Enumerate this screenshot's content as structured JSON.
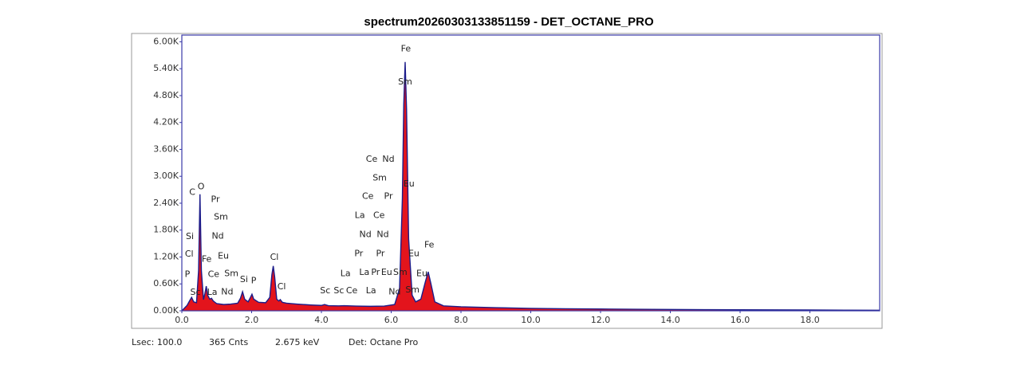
{
  "chart_data": {
    "type": "area",
    "title": "spectrum20260303133851159 - DET_OCTANE_PRO",
    "x": [
      0,
      0.15,
      0.22,
      0.28,
      0.34,
      0.42,
      0.48,
      0.52,
      0.56,
      0.62,
      0.66,
      0.7,
      0.74,
      0.8,
      0.85,
      0.9,
      1,
      1.2,
      1.4,
      1.6,
      1.68,
      1.74,
      1.8,
      1.9,
      1.96,
      2.01,
      2.06,
      2.2,
      2.4,
      2.52,
      2.58,
      2.62,
      2.66,
      2.72,
      2.78,
      2.82,
      2.88,
      3,
      3.3,
      3.7,
      4,
      4.09,
      4.2,
      4.5,
      4.65,
      5,
      5.4,
      5.8,
      6.1,
      6.24,
      6.32,
      6.36,
      6.4,
      6.44,
      6.5,
      6.6,
      6.7,
      6.85,
      6.98,
      7.06,
      7.14,
      7.25,
      7.5,
      8,
      9,
      10,
      11,
      12,
      13,
      14,
      15,
      16,
      17,
      18,
      19,
      20
    ],
    "values": [
      0,
      120,
      220,
      300,
      200,
      180,
      900,
      2600,
      900,
      250,
      380,
      550,
      350,
      260,
      280,
      220,
      160,
      140,
      150,
      170,
      280,
      425,
      260,
      200,
      290,
      370,
      260,
      190,
      180,
      300,
      800,
      1000,
      760,
      260,
      220,
      250,
      190,
      170,
      150,
      130,
      120,
      140,
      115,
      110,
      115,
      105,
      100,
      105,
      140,
      500,
      2500,
      4600,
      5550,
      4500,
      1600,
      350,
      200,
      260,
      650,
      870,
      600,
      200,
      110,
      90,
      70,
      55,
      45,
      40,
      35,
      30,
      25,
      22,
      20,
      18,
      15,
      12
    ],
    "color": "#e3141c",
    "line_color": "#1c1c8a",
    "xlim": [
      0,
      20
    ],
    "xticks": [
      {
        "value": 0,
        "label": "0.0"
      },
      {
        "value": 2,
        "label": "2.0"
      },
      {
        "value": 4,
        "label": "4.0"
      },
      {
        "value": 6,
        "label": "6.0"
      },
      {
        "value": 8,
        "label": "8.0"
      },
      {
        "value": 10,
        "label": "10.0"
      },
      {
        "value": 12,
        "label": "12.0"
      },
      {
        "value": 14,
        "label": "14.0"
      },
      {
        "value": 16,
        "label": "16.0"
      },
      {
        "value": 18,
        "label": "18.0"
      }
    ],
    "ylim": [
      0,
      6150
    ],
    "yticks": [
      {
        "value": 0,
        "label": "0.00K"
      },
      {
        "value": 600,
        "label": "0.60K"
      },
      {
        "value": 1200,
        "label": "1.20K"
      },
      {
        "value": 1800,
        "label": "1.80K"
      },
      {
        "value": 2400,
        "label": "2.40K"
      },
      {
        "value": 3000,
        "label": "3.00K"
      },
      {
        "value": 3600,
        "label": "3.60K"
      },
      {
        "value": 4200,
        "label": "4.20K"
      },
      {
        "value": 4800,
        "label": "4.80K"
      },
      {
        "value": 5400,
        "label": "5.40K"
      },
      {
        "value": 6000,
        "label": "6.00K"
      }
    ],
    "annotations": [
      {
        "text": "Fe",
        "x": 6.42,
        "y": 5840
      },
      {
        "text": "Sm",
        "x": 6.4,
        "y": 5100
      },
      {
        "text": "C",
        "x": 0.3,
        "y": 2640
      },
      {
        "text": "O",
        "x": 0.55,
        "y": 2760
      },
      {
        "text": "Pr",
        "x": 0.96,
        "y": 2480
      },
      {
        "text": "Sm",
        "x": 1.12,
        "y": 2090
      },
      {
        "text": "Nd",
        "x": 1.03,
        "y": 1660
      },
      {
        "text": "Si",
        "x": 0.23,
        "y": 1650
      },
      {
        "text": "Cl",
        "x": 0.21,
        "y": 1260
      },
      {
        "text": "Fe",
        "x": 0.71,
        "y": 1150
      },
      {
        "text": "Eu",
        "x": 1.19,
        "y": 1220
      },
      {
        "text": "Ce",
        "x": 0.91,
        "y": 810
      },
      {
        "text": "Sm",
        "x": 1.42,
        "y": 830
      },
      {
        "text": "P",
        "x": 0.16,
        "y": 810
      },
      {
        "text": "Si",
        "x": 1.78,
        "y": 690
      },
      {
        "text": "P",
        "x": 2.06,
        "y": 670
      },
      {
        "text": "Sc",
        "x": 0.39,
        "y": 410
      },
      {
        "text": "La",
        "x": 0.87,
        "y": 410
      },
      {
        "text": "Nd",
        "x": 1.3,
        "y": 420
      },
      {
        "text": "Cl",
        "x": 2.65,
        "y": 1190
      },
      {
        "text": "Cl",
        "x": 2.86,
        "y": 530
      },
      {
        "text": "Sc",
        "x": 4.11,
        "y": 440
      },
      {
        "text": "Sc",
        "x": 4.5,
        "y": 440
      },
      {
        "text": "Ce",
        "x": 4.87,
        "y": 440
      },
      {
        "text": "Ce",
        "x": 5.44,
        "y": 3380
      },
      {
        "text": "Nd",
        "x": 5.92,
        "y": 3380
      },
      {
        "text": "Sm",
        "x": 5.67,
        "y": 2960
      },
      {
        "text": "Ce",
        "x": 5.33,
        "y": 2550
      },
      {
        "text": "Pr",
        "x": 5.92,
        "y": 2550
      },
      {
        "text": "Eu",
        "x": 6.51,
        "y": 2830
      },
      {
        "text": "La",
        "x": 5.1,
        "y": 2120
      },
      {
        "text": "Ce",
        "x": 5.65,
        "y": 2120
      },
      {
        "text": "Nd",
        "x": 5.26,
        "y": 1700
      },
      {
        "text": "Nd",
        "x": 5.76,
        "y": 1700
      },
      {
        "text": "Pr",
        "x": 5.07,
        "y": 1270
      },
      {
        "text": "Pr",
        "x": 5.69,
        "y": 1270
      },
      {
        "text": "Eu",
        "x": 6.65,
        "y": 1270
      },
      {
        "text": "Fe",
        "x": 7.09,
        "y": 1470
      },
      {
        "text": "La",
        "x": 4.69,
        "y": 830
      },
      {
        "text": "La",
        "x": 5.23,
        "y": 850
      },
      {
        "text": "Pr",
        "x": 5.55,
        "y": 850
      },
      {
        "text": "Eu",
        "x": 5.87,
        "y": 850
      },
      {
        "text": "Sm",
        "x": 6.26,
        "y": 850
      },
      {
        "text": "Eu",
        "x": 6.88,
        "y": 830
      },
      {
        "text": "La",
        "x": 5.42,
        "y": 440
      },
      {
        "text": "Nd",
        "x": 6.1,
        "y": 420
      },
      {
        "text": "Sm",
        "x": 6.61,
        "y": 460
      }
    ],
    "footer": [
      "Lsec: 100.0",
      "365 Cnts",
      "2.675 keV",
      "Det: Octane Pro"
    ]
  }
}
